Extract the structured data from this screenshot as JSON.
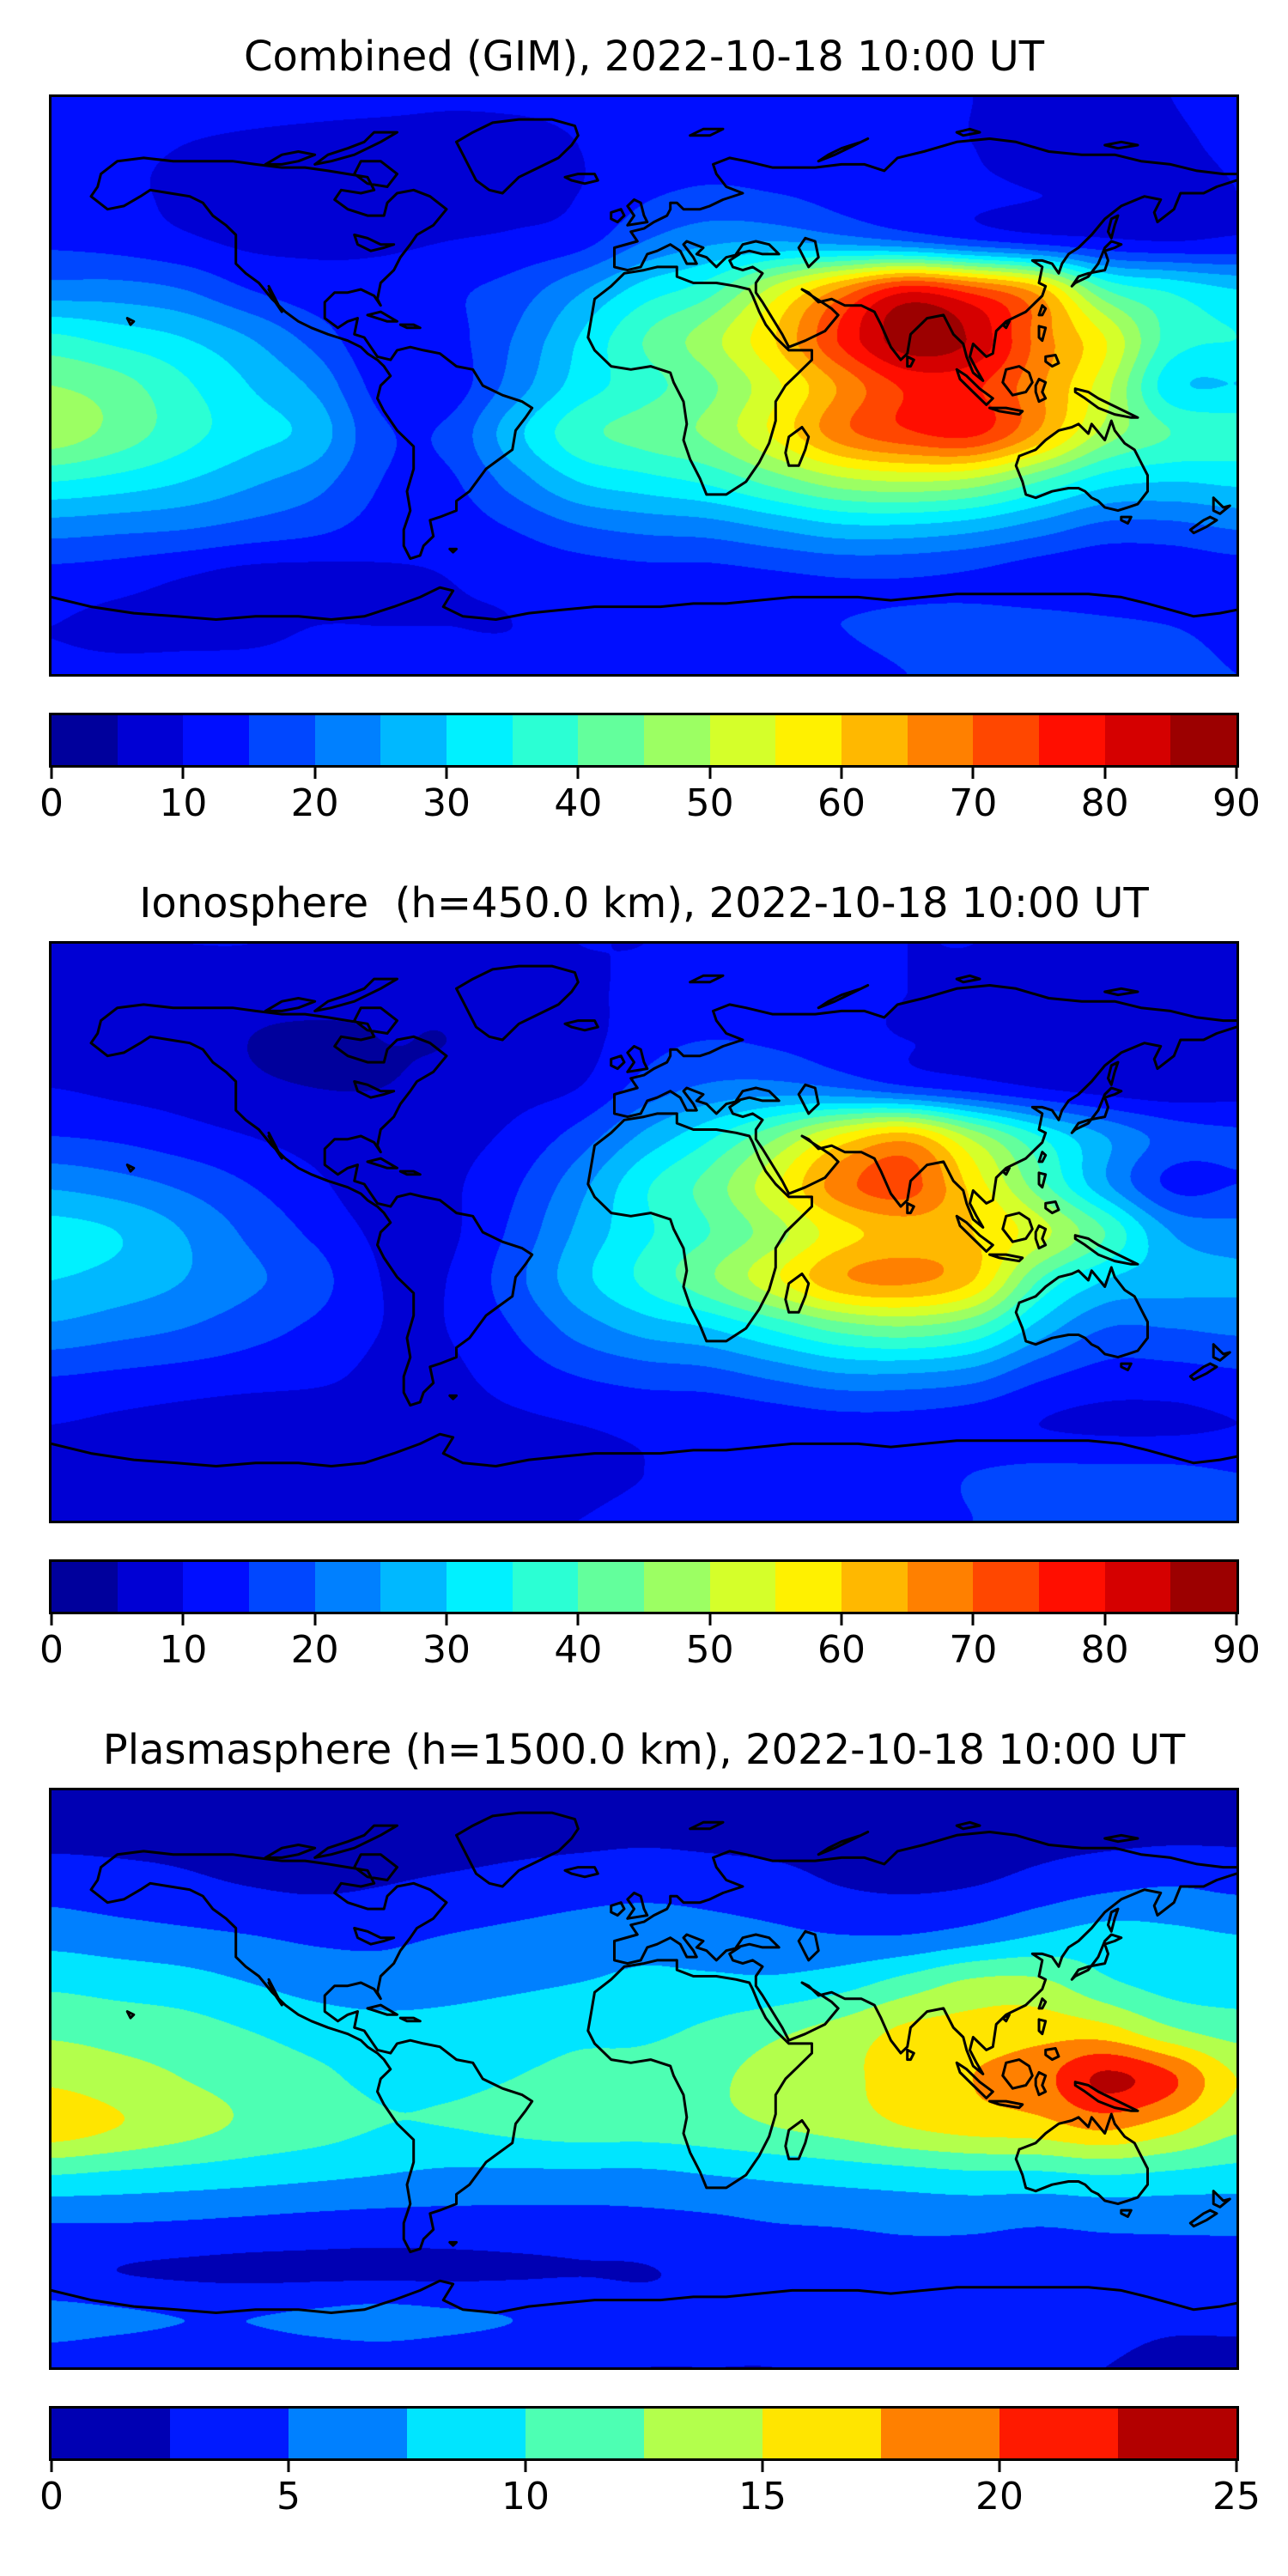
{
  "figure": {
    "background": "#ffffff",
    "text_color": "#000000",
    "colormap": "jet",
    "coastline_color": "#000000"
  },
  "panels": [
    {
      "id": "combined",
      "title": "Combined (GIM), 2022-10-18 10:00 UT",
      "colorbar": {
        "min": 0,
        "max": 90,
        "bins": 18,
        "ticks": [
          0,
          10,
          20,
          30,
          40,
          50,
          60,
          70,
          80,
          90
        ]
      }
    },
    {
      "id": "ionosphere",
      "title": "Ionosphere  (h=450.0 km), 2022-10-18 10:00 UT",
      "colorbar": {
        "min": 0,
        "max": 90,
        "bins": 18,
        "ticks": [
          0,
          10,
          20,
          30,
          40,
          50,
          60,
          70,
          80,
          90
        ]
      }
    },
    {
      "id": "plasmasphere",
      "title": "Plasmasphere (h=1500.0 km), 2022-10-18 10:00 UT",
      "colorbar": {
        "min": 0,
        "max": 25,
        "bins": 10,
        "ticks": [
          0,
          5,
          10,
          15,
          20,
          25
        ]
      }
    }
  ],
  "chart_data": [
    {
      "type": "heatmap",
      "title": "Combined (GIM), 2022-10-18 10:00 UT",
      "projection": "equirectangular",
      "colormap": "jet",
      "levels": {
        "min": 0,
        "max": 90,
        "step": 5
      },
      "lon": [
        -180,
        -160,
        -140,
        -120,
        -100,
        -80,
        -60,
        -40,
        -20,
        0,
        20,
        40,
        60,
        80,
        100,
        120,
        140,
        160,
        180
      ],
      "lat": [
        90,
        75,
        60,
        45,
        30,
        15,
        0,
        -15,
        -30,
        -45,
        -60,
        -75,
        -90
      ],
      "values": [
        [
          12,
          12,
          12,
          12,
          12,
          12,
          11,
          11,
          11,
          11,
          12,
          12,
          12,
          11,
          10,
          9,
          9,
          10,
          12
        ],
        [
          11,
          11,
          10,
          9,
          8,
          7,
          7,
          8,
          10,
          11,
          12,
          12,
          12,
          11,
          10,
          9,
          8,
          9,
          11
        ],
        [
          12,
          11,
          9,
          7,
          6,
          7,
          7,
          8,
          10,
          14,
          16,
          15,
          13,
          12,
          11,
          10,
          9,
          8,
          10
        ],
        [
          14,
          13,
          11,
          9,
          9,
          9,
          10,
          11,
          13,
          20,
          24,
          25,
          23,
          20,
          16,
          13,
          11,
          10,
          11
        ],
        [
          22,
          22,
          20,
          15,
          12,
          12,
          14,
          17,
          24,
          32,
          38,
          52,
          66,
          78,
          72,
          62,
          40,
          34,
          30
        ],
        [
          36,
          33,
          30,
          25,
          18,
          11,
          13,
          20,
          30,
          40,
          48,
          60,
          76,
          88,
          84,
          68,
          55,
          38,
          35
        ],
        [
          45,
          42,
          36,
          30,
          24,
          13,
          12,
          22,
          32,
          38,
          44,
          54,
          66,
          76,
          76,
          66,
          52,
          32,
          30
        ],
        [
          48,
          43,
          37,
          32,
          28,
          16,
          16,
          28,
          38,
          42,
          46,
          56,
          68,
          74,
          76,
          64,
          48,
          40,
          38
        ],
        [
          35,
          33,
          30,
          26,
          22,
          15,
          14,
          22,
          30,
          33,
          36,
          42,
          48,
          50,
          48,
          40,
          32,
          30,
          31
        ],
        [
          22,
          21,
          20,
          18,
          16,
          13,
          12,
          15,
          19,
          21,
          22,
          25,
          28,
          28,
          26,
          22,
          18,
          18,
          20
        ],
        [
          13,
          12,
          10,
          8,
          8,
          9,
          10,
          11,
          12,
          13,
          13,
          14,
          15,
          15,
          14,
          12,
          11,
          11,
          12
        ],
        [
          10,
          9,
          9,
          9,
          10,
          10,
          10,
          10,
          11,
          12,
          13,
          14,
          15,
          16,
          17,
          17,
          16,
          15,
          14
        ],
        [
          11,
          11,
          11,
          11,
          11,
          11,
          11,
          11,
          11,
          12,
          12,
          13,
          14,
          15,
          16,
          17,
          17,
          16,
          15
        ]
      ]
    },
    {
      "type": "heatmap",
      "title": "Ionosphere  (h=450.0 km), 2022-10-18 10:00 UT",
      "projection": "equirectangular",
      "colormap": "jet",
      "levels": {
        "min": 0,
        "max": 90,
        "step": 5
      },
      "lon": [
        -180,
        -160,
        -140,
        -120,
        -100,
        -80,
        -60,
        -40,
        -20,
        0,
        20,
        40,
        60,
        80,
        100,
        120,
        140,
        160,
        180
      ],
      "lat": [
        90,
        75,
        60,
        45,
        30,
        15,
        0,
        -15,
        -30,
        -45,
        -60,
        -75,
        -90
      ],
      "values": [
        [
          10,
          10,
          10,
          10,
          9,
          9,
          9,
          9,
          10,
          10,
          11,
          11,
          11,
          10,
          10,
          9,
          9,
          9,
          10
        ],
        [
          9,
          9,
          8,
          7,
          7,
          6,
          6,
          7,
          9,
          11,
          12,
          12,
          11,
          10,
          9,
          8,
          8,
          8,
          9
        ],
        [
          8,
          8,
          7,
          5,
          4,
          5,
          5,
          6,
          8,
          13,
          15,
          14,
          12,
          10,
          9,
          8,
          7,
          6,
          7
        ],
        [
          10,
          9,
          8,
          6,
          5,
          5,
          6,
          8,
          10,
          17,
          21,
          22,
          20,
          16,
          13,
          10,
          8,
          7,
          8
        ],
        [
          15,
          14,
          12,
          10,
          8,
          7,
          8,
          11,
          17,
          26,
          34,
          44,
          56,
          62,
          48,
          35,
          25,
          18,
          16
        ],
        [
          24,
          22,
          19,
          15,
          11,
          7,
          9,
          14,
          23,
          34,
          42,
          54,
          68,
          72,
          58,
          42,
          26,
          14,
          15
        ],
        [
          32,
          30,
          25,
          19,
          14,
          9,
          9,
          16,
          26,
          34,
          40,
          48,
          58,
          62,
          60,
          52,
          40,
          25,
          22
        ],
        [
          30,
          28,
          25,
          21,
          17,
          10,
          10,
          18,
          28,
          36,
          44,
          54,
          64,
          66,
          60,
          40,
          30,
          27,
          26
        ],
        [
          24,
          22,
          20,
          17,
          14,
          10,
          10,
          15,
          22,
          27,
          30,
          36,
          42,
          44,
          40,
          28,
          20,
          20,
          21
        ],
        [
          15,
          14,
          13,
          12,
          11,
          9,
          9,
          12,
          15,
          17,
          18,
          21,
          24,
          24,
          22,
          16,
          13,
          13,
          14
        ],
        [
          10,
          9,
          8,
          7,
          7,
          8,
          8,
          9,
          10,
          11,
          11,
          12,
          13,
          13,
          12,
          10,
          9,
          9,
          10
        ],
        [
          8,
          8,
          8,
          8,
          8,
          8,
          8,
          8,
          9,
          10,
          11,
          12,
          13,
          14,
          15,
          16,
          16,
          16,
          15
        ],
        [
          10,
          10,
          10,
          10,
          10,
          10,
          10,
          10,
          10,
          11,
          12,
          13,
          13,
          14,
          15,
          16,
          17,
          17,
          16
        ]
      ]
    },
    {
      "type": "heatmap",
      "title": "Plasmasphere (h=1500.0 km), 2022-10-18 10:00 UT",
      "projection": "equirectangular",
      "colormap": "jet",
      "levels": {
        "min": 0,
        "max": 25,
        "step": 2.5
      },
      "lon": [
        -180,
        -160,
        -140,
        -120,
        -100,
        -80,
        -60,
        -40,
        -20,
        0,
        20,
        40,
        60,
        80,
        100,
        120,
        140,
        160,
        180
      ],
      "lat": [
        90,
        75,
        60,
        45,
        30,
        15,
        0,
        -15,
        -30,
        -45,
        -60,
        -75,
        -90
      ],
      "values": [
        [
          1.5,
          1.5,
          1.5,
          1.5,
          1.5,
          1.5,
          1.5,
          1.5,
          1.5,
          1.5,
          1.5,
          1.5,
          1.5,
          1.5,
          1.5,
          1.5,
          1.5,
          1.5,
          1.5
        ],
        [
          2,
          2,
          2,
          1.8,
          1.5,
          1.5,
          1.5,
          1.8,
          2,
          2.2,
          2,
          1.8,
          1.5,
          1.5,
          1.5,
          1.8,
          2,
          2.2,
          2.2
        ],
        [
          4,
          3.5,
          3,
          2.5,
          2.2,
          2.5,
          3,
          3.5,
          4,
          4.2,
          4,
          3.5,
          2.5,
          2.2,
          2.5,
          3.5,
          4.5,
          5,
          4.5
        ],
        [
          6.5,
          6,
          5.5,
          5,
          4.5,
          4.5,
          5,
          5.5,
          6,
          6.5,
          6,
          5.5,
          5,
          5,
          6,
          7.5,
          8.5,
          8,
          7.5
        ],
        [
          9.5,
          9,
          8.5,
          7.5,
          6.5,
          6,
          6.5,
          7,
          7.5,
          8,
          8,
          8,
          9,
          11,
          13,
          13,
          10.5,
          9,
          8.5
        ],
        [
          12,
          11.5,
          11,
          10,
          9,
          8.5,
          8.5,
          9,
          9.5,
          9.5,
          10.5,
          12,
          13.5,
          15.5,
          16,
          16.5,
          16,
          13,
          11.5
        ],
        [
          14.5,
          13.5,
          12.5,
          11.5,
          10.5,
          9.5,
          9.5,
          10,
          10.5,
          11,
          12,
          13.5,
          14.5,
          16,
          17.5,
          19,
          23,
          20.5,
          15
        ],
        [
          16.5,
          15,
          13.5,
          12,
          11,
          10,
          10,
          10.5,
          11,
          11,
          11.5,
          12.5,
          13.5,
          15,
          16,
          16.5,
          18,
          16,
          13
        ],
        [
          10,
          9.5,
          9,
          8.5,
          8,
          7.5,
          7,
          7,
          7,
          7,
          7.5,
          8,
          8.5,
          9,
          9.5,
          9.5,
          10,
          9.5,
          9
        ],
        [
          5,
          5,
          4.8,
          4.5,
          4.2,
          4,
          4,
          4,
          4,
          4.2,
          4.5,
          5,
          5.2,
          5.5,
          5.5,
          5.2,
          5.5,
          5.5,
          5.5
        ],
        [
          3,
          2.5,
          2.2,
          2,
          2,
          2,
          2,
          2.2,
          2.4,
          2.4,
          3,
          3.5,
          4,
          4.2,
          4.2,
          4,
          4,
          4.2,
          4.2
        ],
        [
          6,
          5.5,
          5,
          5,
          5.5,
          6,
          5.5,
          5,
          4.5,
          3.5,
          3,
          3,
          3.2,
          3.5,
          3.5,
          3.2,
          3,
          2.8,
          2.8
        ],
        [
          3.5,
          3,
          3,
          3,
          3.2,
          3.2,
          3,
          2.8,
          2.6,
          2.5,
          2.5,
          2.5,
          2.6,
          2.8,
          2.8,
          2.6,
          2.5,
          2.2,
          2.2
        ]
      ]
    }
  ]
}
